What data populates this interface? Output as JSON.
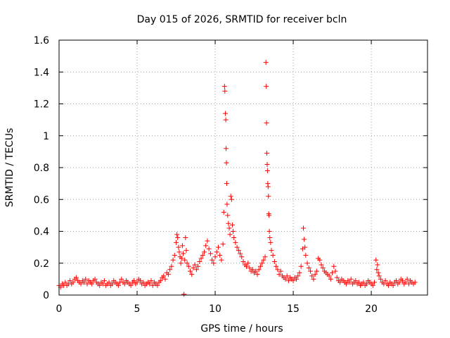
{
  "chart_data": {
    "type": "scatter",
    "title": "Day 015 of 2026, SRMTID for receiver bcln",
    "xlabel": "GPS time / hours",
    "ylabel": "SRMTID / TECUs",
    "xlim": [
      0,
      23.6
    ],
    "ylim": [
      0,
      1.6
    ],
    "xticks": [
      0,
      5,
      10,
      15,
      20
    ],
    "xtick_labels": [
      "0",
      "5",
      "10",
      "15",
      "20"
    ],
    "yticks": [
      0,
      0.2,
      0.4,
      0.6,
      0.8,
      1,
      1.2,
      1.4,
      1.6
    ],
    "ytick_labels": [
      "0",
      "0.2",
      "0.4",
      "0.6",
      "0.8",
      "1",
      "1.2",
      "1.4",
      "1.6"
    ],
    "grid": true,
    "marker": "plus",
    "color": "#ff0000",
    "series": [
      {
        "name": "SRMTID",
        "points": [
          [
            0.0,
            0.06
          ],
          [
            0.1,
            0.05
          ],
          [
            0.2,
            0.07
          ],
          [
            0.3,
            0.06
          ],
          [
            0.4,
            0.08
          ],
          [
            0.5,
            0.06
          ],
          [
            0.6,
            0.07
          ],
          [
            0.7,
            0.09
          ],
          [
            0.8,
            0.07
          ],
          [
            0.9,
            0.08
          ],
          [
            1.0,
            0.1
          ],
          [
            1.1,
            0.11
          ],
          [
            1.2,
            0.09
          ],
          [
            1.3,
            0.08
          ],
          [
            1.4,
            0.07
          ],
          [
            1.5,
            0.09
          ],
          [
            1.6,
            0.08
          ],
          [
            1.7,
            0.1
          ],
          [
            1.8,
            0.07
          ],
          [
            1.9,
            0.09
          ],
          [
            2.0,
            0.08
          ],
          [
            2.1,
            0.07
          ],
          [
            2.2,
            0.09
          ],
          [
            2.3,
            0.1
          ],
          [
            2.4,
            0.08
          ],
          [
            2.5,
            0.07
          ],
          [
            2.6,
            0.06
          ],
          [
            2.7,
            0.08
          ],
          [
            2.8,
            0.07
          ],
          [
            2.9,
            0.09
          ],
          [
            3.0,
            0.06
          ],
          [
            3.1,
            0.07
          ],
          [
            3.2,
            0.08
          ],
          [
            3.3,
            0.06
          ],
          [
            3.4,
            0.07
          ],
          [
            3.5,
            0.09
          ],
          [
            3.6,
            0.08
          ],
          [
            3.7,
            0.07
          ],
          [
            3.8,
            0.06
          ],
          [
            3.9,
            0.08
          ],
          [
            4.0,
            0.1
          ],
          [
            4.1,
            0.08
          ],
          [
            4.2,
            0.07
          ],
          [
            4.3,
            0.09
          ],
          [
            4.4,
            0.08
          ],
          [
            4.5,
            0.07
          ],
          [
            4.6,
            0.06
          ],
          [
            4.7,
            0.08
          ],
          [
            4.8,
            0.09
          ],
          [
            4.9,
            0.07
          ],
          [
            5.0,
            0.08
          ],
          [
            5.1,
            0.1
          ],
          [
            5.2,
            0.09
          ],
          [
            5.3,
            0.07
          ],
          [
            5.4,
            0.08
          ],
          [
            5.5,
            0.06
          ],
          [
            5.6,
            0.07
          ],
          [
            5.7,
            0.08
          ],
          [
            5.8,
            0.07
          ],
          [
            5.9,
            0.09
          ],
          [
            6.0,
            0.06
          ],
          [
            6.1,
            0.08
          ],
          [
            6.2,
            0.07
          ],
          [
            6.3,
            0.06
          ],
          [
            6.4,
            0.08
          ],
          [
            6.5,
            0.09
          ],
          [
            6.6,
            0.11
          ],
          [
            6.7,
            0.12
          ],
          [
            6.8,
            0.1
          ],
          [
            6.9,
            0.14
          ],
          [
            7.0,
            0.13
          ],
          [
            7.1,
            0.16
          ],
          [
            7.2,
            0.18
          ],
          [
            7.3,
            0.22
          ],
          [
            7.4,
            0.25
          ],
          [
            7.5,
            0.33
          ],
          [
            7.55,
            0.38
          ],
          [
            7.6,
            0.36
          ],
          [
            7.65,
            0.3
          ],
          [
            7.7,
            0.27
          ],
          [
            7.75,
            0.24
          ],
          [
            7.8,
            0.2
          ],
          [
            7.85,
            0.23
          ],
          [
            7.9,
            0.31
          ],
          [
            7.95,
            0.26
          ],
          [
            8.0,
            0.005
          ],
          [
            8.05,
            0.22
          ],
          [
            8.1,
            0.36
          ],
          [
            8.15,
            0.28
          ],
          [
            8.2,
            0.2
          ],
          [
            8.3,
            0.18
          ],
          [
            8.4,
            0.15
          ],
          [
            8.5,
            0.13
          ],
          [
            8.6,
            0.17
          ],
          [
            8.7,
            0.19
          ],
          [
            8.8,
            0.16
          ],
          [
            8.9,
            0.18
          ],
          [
            9.0,
            0.21
          ],
          [
            9.1,
            0.23
          ],
          [
            9.2,
            0.25
          ],
          [
            9.3,
            0.27
          ],
          [
            9.4,
            0.31
          ],
          [
            9.5,
            0.34
          ],
          [
            9.6,
            0.29
          ],
          [
            9.7,
            0.26
          ],
          [
            9.8,
            0.22
          ],
          [
            9.9,
            0.2
          ],
          [
            10.0,
            0.24
          ],
          [
            10.1,
            0.27
          ],
          [
            10.2,
            0.3
          ],
          [
            10.3,
            0.25
          ],
          [
            10.4,
            0.22
          ],
          [
            10.5,
            0.32
          ],
          [
            10.55,
            0.52
          ],
          [
            10.6,
            1.31
          ],
          [
            10.62,
            1.28
          ],
          [
            10.65,
            1.14
          ],
          [
            10.68,
            1.1
          ],
          [
            10.7,
            0.92
          ],
          [
            10.72,
            0.83
          ],
          [
            10.74,
            0.7
          ],
          [
            10.76,
            0.57
          ],
          [
            10.8,
            0.5
          ],
          [
            10.85,
            0.45
          ],
          [
            10.9,
            0.42
          ],
          [
            10.95,
            0.38
          ],
          [
            11.0,
            0.62
          ],
          [
            11.05,
            0.6
          ],
          [
            11.1,
            0.44
          ],
          [
            11.15,
            0.4
          ],
          [
            11.2,
            0.36
          ],
          [
            11.3,
            0.33
          ],
          [
            11.4,
            0.3
          ],
          [
            11.5,
            0.28
          ],
          [
            11.6,
            0.26
          ],
          [
            11.7,
            0.24
          ],
          [
            11.8,
            0.21
          ],
          [
            11.9,
            0.19
          ],
          [
            12.0,
            0.18
          ],
          [
            12.1,
            0.2
          ],
          [
            12.2,
            0.17
          ],
          [
            12.3,
            0.15
          ],
          [
            12.4,
            0.16
          ],
          [
            12.5,
            0.14
          ],
          [
            12.6,
            0.15
          ],
          [
            12.7,
            0.13
          ],
          [
            12.8,
            0.16
          ],
          [
            12.9,
            0.18
          ],
          [
            13.0,
            0.2
          ],
          [
            13.1,
            0.22
          ],
          [
            13.2,
            0.24
          ],
          [
            13.25,
            1.46
          ],
          [
            13.27,
            1.31
          ],
          [
            13.29,
            1.08
          ],
          [
            13.31,
            0.89
          ],
          [
            13.33,
            0.82
          ],
          [
            13.35,
            0.78
          ],
          [
            13.37,
            0.7
          ],
          [
            13.39,
            0.68
          ],
          [
            13.41,
            0.62
          ],
          [
            13.43,
            0.51
          ],
          [
            13.45,
            0.5
          ],
          [
            13.47,
            0.4
          ],
          [
            13.5,
            0.36
          ],
          [
            13.55,
            0.33
          ],
          [
            13.6,
            0.28
          ],
          [
            13.7,
            0.25
          ],
          [
            13.8,
            0.21
          ],
          [
            13.9,
            0.18
          ],
          [
            14.0,
            0.16
          ],
          [
            14.1,
            0.13
          ],
          [
            14.2,
            0.15
          ],
          [
            14.3,
            0.12
          ],
          [
            14.4,
            0.11
          ],
          [
            14.5,
            0.1
          ],
          [
            14.6,
            0.12
          ],
          [
            14.7,
            0.09
          ],
          [
            14.8,
            0.11
          ],
          [
            14.9,
            0.1
          ],
          [
            15.0,
            0.09
          ],
          [
            15.1,
            0.11
          ],
          [
            15.2,
            0.1
          ],
          [
            15.3,
            0.12
          ],
          [
            15.4,
            0.14
          ],
          [
            15.5,
            0.18
          ],
          [
            15.6,
            0.29
          ],
          [
            15.65,
            0.42
          ],
          [
            15.7,
            0.35
          ],
          [
            15.75,
            0.3
          ],
          [
            15.8,
            0.25
          ],
          [
            15.9,
            0.2
          ],
          [
            16.0,
            0.17
          ],
          [
            16.1,
            0.15
          ],
          [
            16.2,
            0.12
          ],
          [
            16.3,
            0.1
          ],
          [
            16.4,
            0.13
          ],
          [
            16.5,
            0.15
          ],
          [
            16.6,
            0.23
          ],
          [
            16.7,
            0.22
          ],
          [
            16.8,
            0.19
          ],
          [
            16.9,
            0.17
          ],
          [
            17.0,
            0.15
          ],
          [
            17.1,
            0.14
          ],
          [
            17.2,
            0.13
          ],
          [
            17.3,
            0.12
          ],
          [
            17.4,
            0.1
          ],
          [
            17.5,
            0.14
          ],
          [
            17.6,
            0.18
          ],
          [
            17.7,
            0.15
          ],
          [
            17.8,
            0.11
          ],
          [
            17.9,
            0.09
          ],
          [
            18.0,
            0.08
          ],
          [
            18.1,
            0.1
          ],
          [
            18.2,
            0.09
          ],
          [
            18.3,
            0.08
          ],
          [
            18.4,
            0.07
          ],
          [
            18.5,
            0.09
          ],
          [
            18.6,
            0.08
          ],
          [
            18.7,
            0.1
          ],
          [
            18.8,
            0.07
          ],
          [
            18.9,
            0.08
          ],
          [
            19.0,
            0.09
          ],
          [
            19.1,
            0.07
          ],
          [
            19.2,
            0.08
          ],
          [
            19.3,
            0.06
          ],
          [
            19.4,
            0.07
          ],
          [
            19.5,
            0.08
          ],
          [
            19.6,
            0.06
          ],
          [
            19.7,
            0.07
          ],
          [
            19.8,
            0.09
          ],
          [
            19.9,
            0.08
          ],
          [
            20.0,
            0.07
          ],
          [
            20.1,
            0.06
          ],
          [
            20.2,
            0.08
          ],
          [
            20.3,
            0.22
          ],
          [
            20.35,
            0.16
          ],
          [
            20.4,
            0.19
          ],
          [
            20.45,
            0.14
          ],
          [
            20.5,
            0.12
          ],
          [
            20.6,
            0.1
          ],
          [
            20.7,
            0.08
          ],
          [
            20.8,
            0.07
          ],
          [
            20.9,
            0.09
          ],
          [
            21.0,
            0.07
          ],
          [
            21.1,
            0.06
          ],
          [
            21.2,
            0.08
          ],
          [
            21.3,
            0.07
          ],
          [
            21.4,
            0.06
          ],
          [
            21.5,
            0.08
          ],
          [
            21.6,
            0.09
          ],
          [
            21.7,
            0.07
          ],
          [
            21.8,
            0.08
          ],
          [
            21.9,
            0.1
          ],
          [
            22.0,
            0.09
          ],
          [
            22.1,
            0.07
          ],
          [
            22.2,
            0.08
          ],
          [
            22.3,
            0.1
          ],
          [
            22.4,
            0.07
          ],
          [
            22.5,
            0.09
          ],
          [
            22.6,
            0.08
          ],
          [
            22.7,
            0.07
          ],
          [
            22.8,
            0.08
          ]
        ]
      }
    ]
  }
}
